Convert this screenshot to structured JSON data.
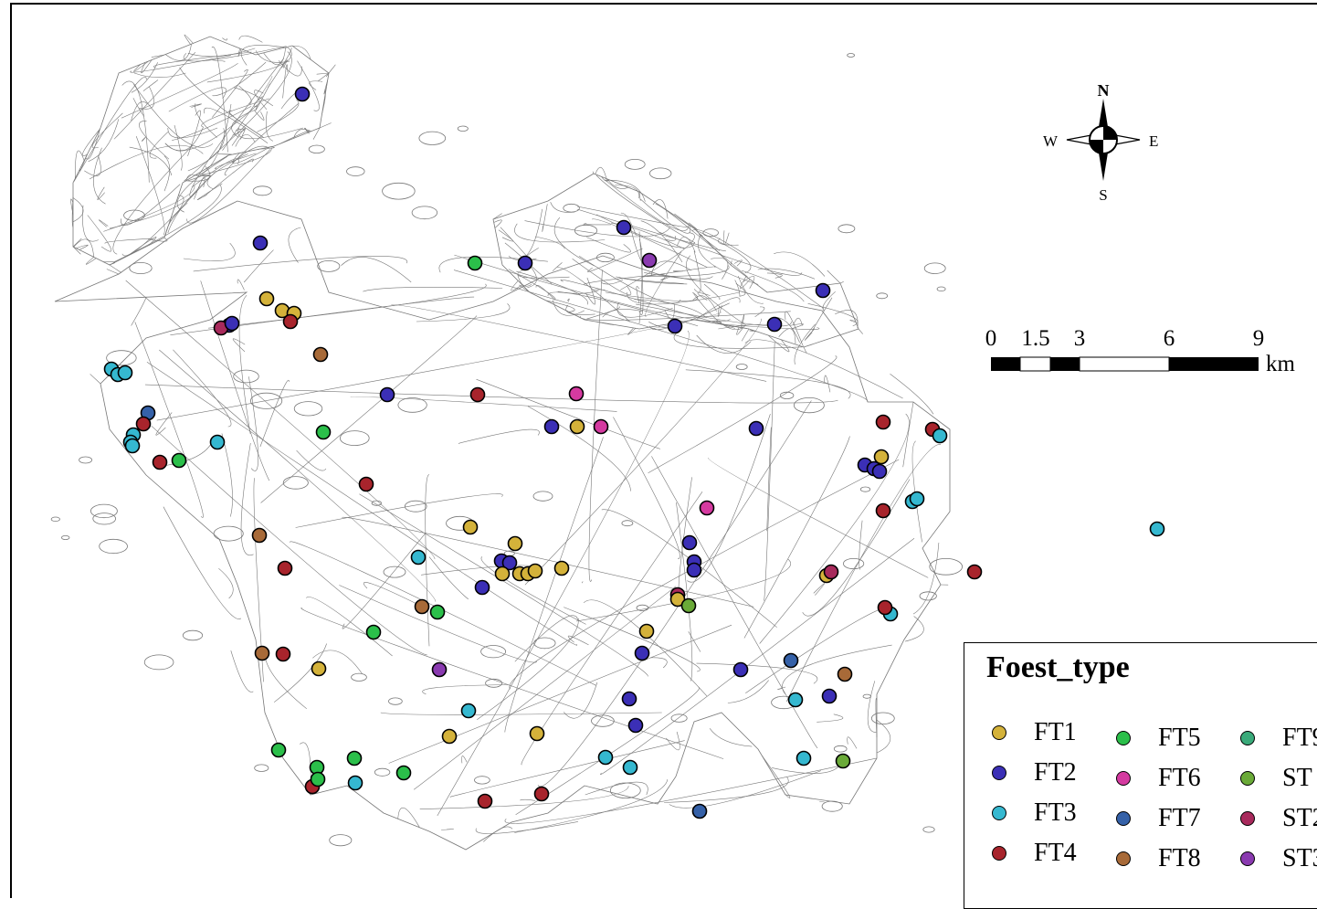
{
  "compass": {
    "n": "N",
    "s": "S",
    "e": "E",
    "w": "W"
  },
  "scale_bar": {
    "ticks": [
      "0",
      "1.5",
      "3",
      "6",
      "9"
    ],
    "unit": "km"
  },
  "legend": {
    "title": "Foest_type",
    "items": [
      {
        "label": "FT1",
        "color": "#d4b23a"
      },
      {
        "label": "FT2",
        "color": "#3b2fb6"
      },
      {
        "label": "FT3",
        "color": "#35b8d0"
      },
      {
        "label": "FT4",
        "color": "#a8242c"
      },
      {
        "label": "FT5",
        "color": "#2bbf4a"
      },
      {
        "label": "FT6",
        "color": "#d53aa0"
      },
      {
        "label": "FT7",
        "color": "#3561a8"
      },
      {
        "label": "FT8",
        "color": "#a86a38"
      },
      {
        "label": "FT9",
        "color": "#3aaa7a"
      },
      {
        "label": "ST",
        "color": "#6aaa38"
      },
      {
        "label": "ST2",
        "color": "#a82a5c"
      },
      {
        "label": "ST3",
        "color": "#8a3ab0"
      }
    ]
  },
  "sample_points": [
    {
      "t": "FT2"
    },
    {
      "t": "FT2"
    },
    {
      "t": "FT5"
    },
    {
      "t": "FT2"
    },
    {
      "t": "FT2"
    },
    {
      "t": "ST3"
    },
    {
      "t": "FT2"
    },
    {
      "t": "FT2"
    },
    {
      "t": "FT2"
    },
    {
      "t": "FT1"
    },
    {
      "t": "FT1"
    },
    {
      "t": "FT1"
    },
    {
      "t": "FT4"
    },
    {
      "t": "FT2"
    },
    {
      "t": "ST2"
    },
    {
      "t": "FT2"
    },
    {
      "t": "FT8"
    },
    {
      "t": "FT3"
    },
    {
      "t": "FT3"
    },
    {
      "t": "FT3"
    },
    {
      "t": "FT2"
    },
    {
      "t": "FT4"
    },
    {
      "t": "FT7"
    },
    {
      "t": "FT4"
    },
    {
      "t": "FT3"
    },
    {
      "t": "FT3"
    },
    {
      "t": "FT3"
    },
    {
      "t": "FT3"
    },
    {
      "t": "FT4"
    },
    {
      "t": "FT5"
    },
    {
      "t": "FT5"
    },
    {
      "t": "FT4"
    },
    {
      "t": "FT8"
    },
    {
      "t": "FT4"
    },
    {
      "t": "FT6"
    },
    {
      "t": "FT2"
    },
    {
      "t": "FT1"
    },
    {
      "t": "FT6"
    },
    {
      "t": "FT2"
    },
    {
      "t": "FT4"
    },
    {
      "t": "FT4"
    },
    {
      "t": "FT3"
    },
    {
      "t": "FT1"
    },
    {
      "t": "FT2"
    },
    {
      "t": "FT2"
    },
    {
      "t": "FT2"
    },
    {
      "t": "FT3"
    },
    {
      "t": "FT3"
    },
    {
      "t": "FT4"
    },
    {
      "t": "FT3"
    },
    {
      "t": "FT1"
    },
    {
      "t": "FT1"
    },
    {
      "t": "FT2"
    },
    {
      "t": "FT2"
    },
    {
      "t": "FT1"
    },
    {
      "t": "FT1"
    },
    {
      "t": "FT1"
    },
    {
      "t": "FT1"
    },
    {
      "t": "FT1"
    },
    {
      "t": "FT2"
    },
    {
      "t": "FT6"
    },
    {
      "t": "FT2"
    },
    {
      "t": "FT2"
    },
    {
      "t": "FT2"
    },
    {
      "t": "ST2"
    },
    {
      "t": "FT1"
    },
    {
      "t": "ST"
    },
    {
      "t": "FT4"
    },
    {
      "t": "FT1"
    },
    {
      "t": "ST2"
    },
    {
      "t": "FT3"
    },
    {
      "t": "FT4"
    },
    {
      "t": "FT3"
    },
    {
      "t": "FT8"
    },
    {
      "t": "FT5"
    },
    {
      "t": "FT5"
    },
    {
      "t": "FT8"
    },
    {
      "t": "FT4"
    },
    {
      "t": "FT1"
    },
    {
      "t": "ST3"
    },
    {
      "t": "FT2"
    },
    {
      "t": "FT1"
    },
    {
      "t": "FT2"
    },
    {
      "t": "FT7"
    },
    {
      "t": "FT8"
    },
    {
      "t": "FT3"
    },
    {
      "t": "FT2"
    },
    {
      "t": "FT2"
    },
    {
      "t": "FT2"
    },
    {
      "t": "FT3"
    },
    {
      "t": "FT1"
    },
    {
      "t": "FT1"
    },
    {
      "t": "FT3"
    },
    {
      "t": "FT3"
    },
    {
      "t": "FT3"
    },
    {
      "t": "ST"
    },
    {
      "t": "FT5"
    },
    {
      "t": "FT5"
    },
    {
      "t": "FT5"
    },
    {
      "t": "FT4"
    },
    {
      "t": "FT5"
    },
    {
      "t": "FT3"
    },
    {
      "t": "FT5"
    },
    {
      "t": "FT4"
    },
    {
      "t": "FT4"
    },
    {
      "t": "FT7"
    }
  ]
}
